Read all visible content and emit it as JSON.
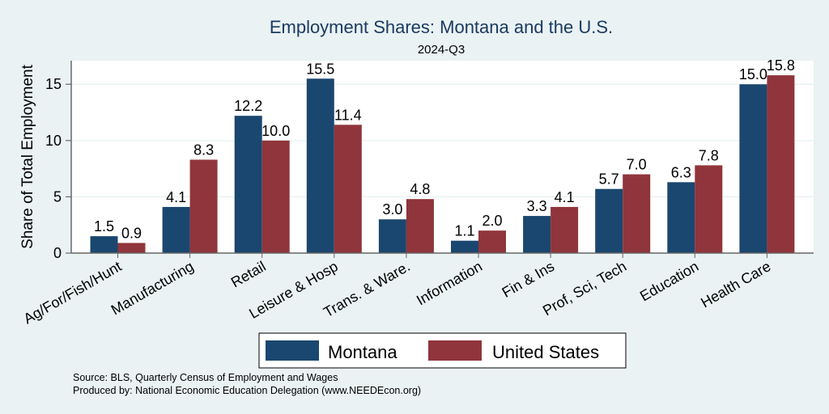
{
  "chart_data": {
    "type": "bar",
    "title": "Employment Shares: Montana and the U.S.",
    "subtitle": "2024-Q3",
    "xlabel": "",
    "ylabel": "Share of Total Employment",
    "ylim": [
      0,
      17.1
    ],
    "yticks": [
      0,
      5,
      10,
      15
    ],
    "grid": true,
    "categories": [
      "Ag/For/Fish/Hunt",
      "Manufacturing",
      "Retail",
      "Leisure & Hosp",
      "Trans. & Ware.",
      "Information",
      "Fin & Ins",
      "Prof, Sci, Tech",
      "Education",
      "Health Care"
    ],
    "series": [
      {
        "name": "Montana",
        "color": "#1a476f",
        "values": [
          1.5,
          4.1,
          12.2,
          15.5,
          3.0,
          1.1,
          3.3,
          5.7,
          6.3,
          15.0
        ],
        "labels": [
          "1.5",
          "4.1",
          "12.2",
          "15.5",
          "3.0",
          "1.1",
          "3.3",
          "5.7",
          "6.3",
          "15.0"
        ]
      },
      {
        "name": "United States",
        "color": "#90353b",
        "values": [
          0.9,
          8.3,
          10.0,
          11.4,
          4.8,
          2.0,
          4.1,
          7.0,
          7.8,
          15.8
        ],
        "labels": [
          "0.9",
          "8.3",
          "10.0",
          "11.4",
          "4.8",
          "2.0",
          "4.1",
          "7.0",
          "7.8",
          "15.8"
        ]
      }
    ],
    "legend_position": "bottom",
    "notes": [
      "Source: BLS, Quarterly Census of Employment and Wages",
      "Produced by: National Economic Education Delegation (www.NEEDEcon.org)"
    ]
  }
}
